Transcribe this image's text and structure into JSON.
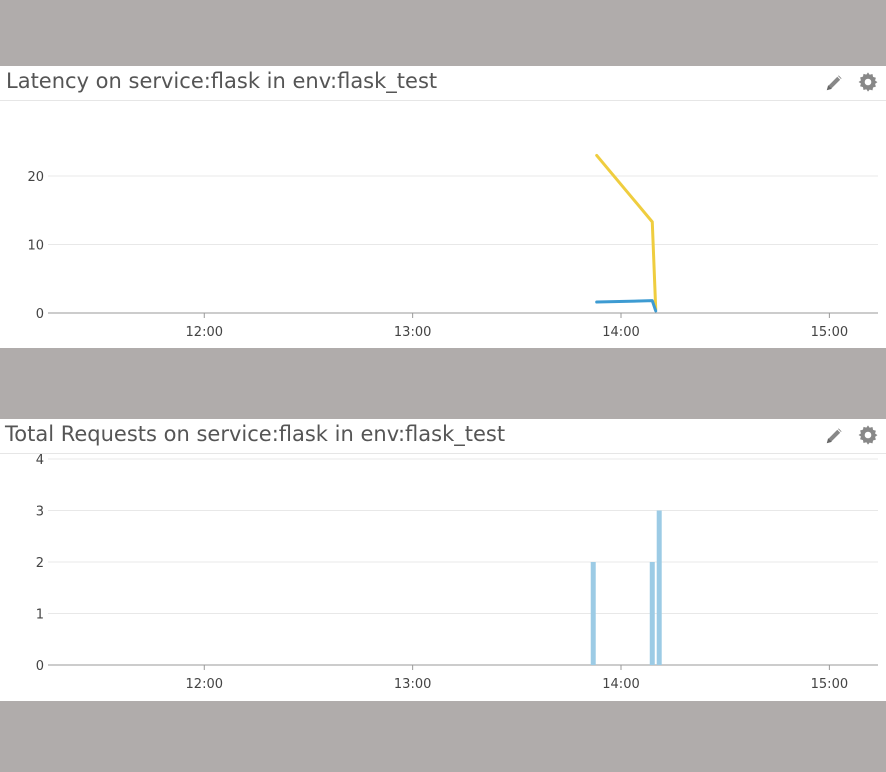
{
  "panels": [
    {
      "title": "Latency on service:flask in env:flask_test",
      "icons": [
        "pencil-icon",
        "gear-icon"
      ]
    },
    {
      "title": "Total Requests on service:flask in env:flask_test",
      "icons": [
        "pencil-icon",
        "gear-icon"
      ]
    }
  ],
  "colors": {
    "background": "#b0acab",
    "series_blue": "#3d9bd2",
    "series_yellow": "#efcd3f",
    "bar_blue": "#9ccbe5",
    "gridline": "#e8e8e8",
    "icon_gray": "#888888"
  },
  "chart_data": [
    {
      "type": "line",
      "title": "Latency on service:flask in env:flask_test",
      "xlabel": "",
      "ylabel": "",
      "x_ticks": [
        "12:00",
        "13:00",
        "14:00",
        "15:00"
      ],
      "xlim": [
        "11:15",
        "15:14"
      ],
      "y_ticks": [
        0,
        10,
        20
      ],
      "ylim": [
        0,
        27
      ],
      "grid": true,
      "series": [
        {
          "color": "#efcd3f",
          "points": [
            [
              "13:53",
              23.0
            ],
            [
              "14:09",
              13.3
            ],
            [
              "14:10",
              0.5
            ]
          ]
        },
        {
          "color": "#3d9bd2",
          "points": [
            [
              "13:53",
              1.6
            ],
            [
              "14:09",
              1.8
            ],
            [
              "14:10",
              0.3
            ]
          ]
        }
      ]
    },
    {
      "type": "bar",
      "title": "Total Requests on service:flask in env:flask_test",
      "xlabel": "",
      "ylabel": "",
      "x_ticks": [
        "12:00",
        "13:00",
        "14:00",
        "15:00"
      ],
      "xlim": [
        "11:15",
        "15:14"
      ],
      "y_ticks": [
        0,
        1,
        2,
        3,
        4
      ],
      "ylim": [
        0,
        4
      ],
      "grid": true,
      "series": [
        {
          "color": "#9ccbe5",
          "x": [
            "13:52",
            "14:09",
            "14:11"
          ],
          "values": [
            2,
            2,
            3
          ]
        }
      ]
    }
  ]
}
